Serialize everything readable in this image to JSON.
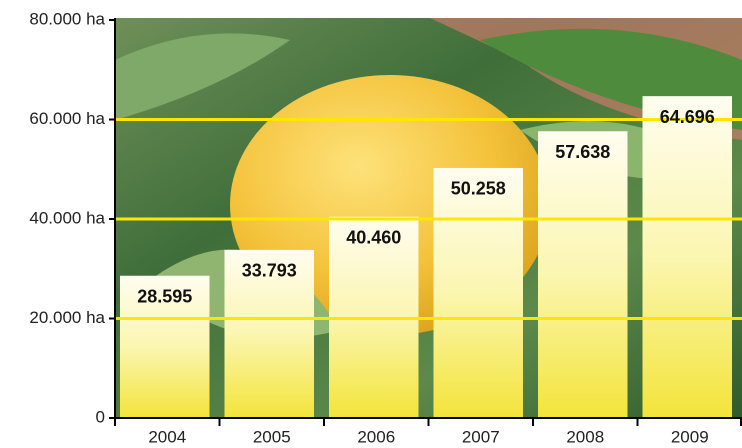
{
  "chart_data": {
    "type": "bar",
    "categories": [
      "2004",
      "2005",
      "2006",
      "2007",
      "2008",
      "2009"
    ],
    "values": [
      28595,
      33793,
      40460,
      50258,
      57638,
      64696
    ],
    "value_labels": [
      "28.595",
      "33.793",
      "40.460",
      "50.258",
      "57.638",
      "64.696"
    ],
    "color": "#f5e83a",
    "ylim": [
      0,
      80000
    ],
    "yticks": [
      0,
      {
        "value": 20000,
        "label": "20.000 ha"
      },
      {
        "value": 40000,
        "label": "40.000 ha"
      },
      {
        "value": 60000,
        "label": "60.000 ha"
      },
      {
        "value": 80000,
        "label": "80.000 ha"
      }
    ],
    "grid": true,
    "grid_color": "#ffe600"
  }
}
